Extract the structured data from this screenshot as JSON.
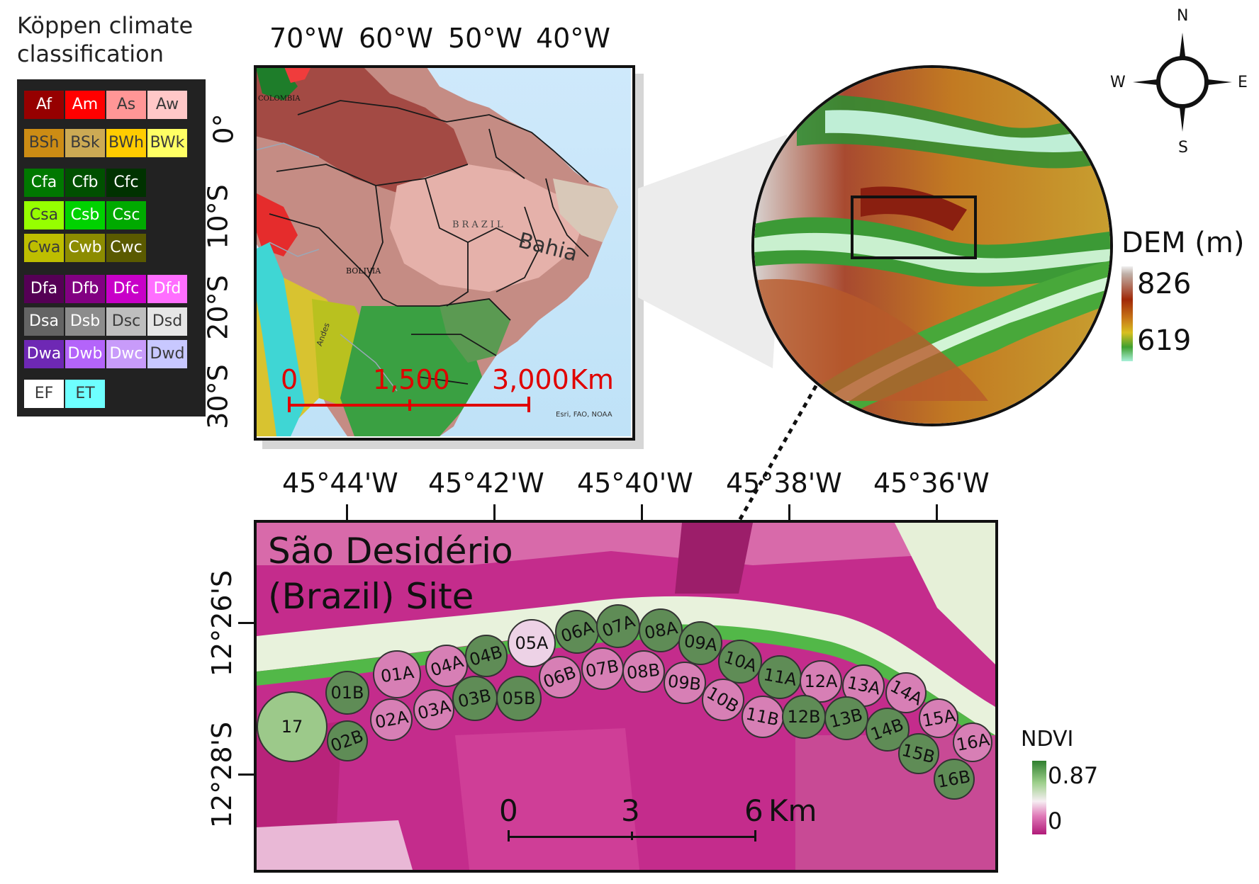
{
  "koppen_legend": {
    "title_line1": "Köppen climate",
    "title_line2": "classification",
    "classes": [
      {
        "code": "Af",
        "color": "#960000"
      },
      {
        "code": "Am",
        "color": "#ff0000"
      },
      {
        "code": "As",
        "color": "#ff9696"
      },
      {
        "code": "Aw",
        "color": "#ffc8c8"
      },
      {
        "code": "BSh",
        "color": "#cc8c14"
      },
      {
        "code": "BSk",
        "color": "#ccaa54"
      },
      {
        "code": "BWh",
        "color": "#ffcc00"
      },
      {
        "code": "BWk",
        "color": "#ffff64"
      },
      {
        "code": "Cfa",
        "color": "#007800"
      },
      {
        "code": "Cfb",
        "color": "#005000"
      },
      {
        "code": "Cfc",
        "color": "#003200"
      },
      {
        "code": "Csa",
        "color": "#96ff00"
      },
      {
        "code": "Csb",
        "color": "#00d200"
      },
      {
        "code": "Csc",
        "color": "#00aa00"
      },
      {
        "code": "Cwa",
        "color": "#bebe00"
      },
      {
        "code": "Cwb",
        "color": "#8c8c00"
      },
      {
        "code": "Cwc",
        "color": "#5a5a00"
      },
      {
        "code": "Dfa",
        "color": "#550055"
      },
      {
        "code": "Dfb",
        "color": "#820082"
      },
      {
        "code": "Dfc",
        "color": "#c800c8"
      },
      {
        "code": "Dfd",
        "color": "#ff6eff"
      },
      {
        "code": "Dsa",
        "color": "#646464"
      },
      {
        "code": "Dsb",
        "color": "#8c8c8c"
      },
      {
        "code": "Dsc",
        "color": "#bebebe"
      },
      {
        "code": "Dsd",
        "color": "#e6e6e6"
      },
      {
        "code": "Dwa",
        "color": "#6e28b4"
      },
      {
        "code": "Dwb",
        "color": "#b464fa"
      },
      {
        "code": "Dwc",
        "color": "#c89bfa"
      },
      {
        "code": "Dwd",
        "color": "#c8c8ff"
      },
      {
        "code": "EF",
        "color": "#ffffff"
      },
      {
        "code": "ET",
        "color": "#6effff"
      }
    ]
  },
  "overview_map": {
    "lon_labels": [
      "70°W",
      "60°W",
      "50°W",
      "40°W"
    ],
    "lat_labels": [
      "0°",
      "10°S",
      "20°S",
      "30°S"
    ],
    "place_labels": {
      "colombia": "COLOMBIA",
      "brazil": "BRAZIL",
      "bolivia": "BOLIVIA",
      "bahia": "Bahia",
      "andes": "Andes"
    },
    "attribution": "Esri, FAO, NOAA",
    "scale": {
      "t0": "0",
      "t1": "1,500",
      "t2": "3,000",
      "unit": "Km",
      "color": "#e00000"
    }
  },
  "compass": {
    "n": "N",
    "s": "S",
    "e": "E",
    "w": "W"
  },
  "dem_legend": {
    "title": "DEM (m)",
    "max": "826",
    "min": "619"
  },
  "site_map": {
    "title_line1": "São Desidério",
    "title_line2": "(Brazil) Site",
    "lon_labels": [
      "45°44'W",
      "45°42'W",
      "45°40'W",
      "45°38'W",
      "45°36'W"
    ],
    "lat_labels": [
      "12°26'S",
      "12°28'S"
    ],
    "scale": {
      "t0": "0",
      "t1": "3",
      "t2": "6",
      "unit": "Km"
    },
    "pivots": [
      {
        "id": "17",
        "fill": "#9cc98a"
      },
      {
        "id": "01A",
        "fill": "#d77fb5"
      },
      {
        "id": "01B",
        "fill": "#5f8c56"
      },
      {
        "id": "02A",
        "fill": "#d77fb5"
      },
      {
        "id": "02B",
        "fill": "#5f8c56"
      },
      {
        "id": "03A",
        "fill": "#d77fb5"
      },
      {
        "id": "03B",
        "fill": "#5f8c56"
      },
      {
        "id": "04A",
        "fill": "#d77fb5"
      },
      {
        "id": "04B",
        "fill": "#5f8c56"
      },
      {
        "id": "05A",
        "fill": "#edd2e6"
      },
      {
        "id": "05B",
        "fill": "#5f8c56"
      },
      {
        "id": "06A",
        "fill": "#5f8c56"
      },
      {
        "id": "06B",
        "fill": "#d77fb5"
      },
      {
        "id": "07A",
        "fill": "#5f8c56"
      },
      {
        "id": "07B",
        "fill": "#d77fb5"
      },
      {
        "id": "08A",
        "fill": "#5f8c56"
      },
      {
        "id": "08B",
        "fill": "#d77fb5"
      },
      {
        "id": "09A",
        "fill": "#5f8c56"
      },
      {
        "id": "09B",
        "fill": "#d77fb5"
      },
      {
        "id": "10A",
        "fill": "#5f8c56"
      },
      {
        "id": "10B",
        "fill": "#d77fb5"
      },
      {
        "id": "11A",
        "fill": "#5f8c56"
      },
      {
        "id": "11B",
        "fill": "#d77fb5"
      },
      {
        "id": "12A",
        "fill": "#d77fb5"
      },
      {
        "id": "12B",
        "fill": "#5f8c56"
      },
      {
        "id": "13A",
        "fill": "#d77fb5"
      },
      {
        "id": "13B",
        "fill": "#5f8c56"
      },
      {
        "id": "14A",
        "fill": "#d77fb5"
      },
      {
        "id": "14B",
        "fill": "#5f8c56"
      },
      {
        "id": "15A",
        "fill": "#d77fb5"
      },
      {
        "id": "15B",
        "fill": "#5f8c56"
      },
      {
        "id": "16A",
        "fill": "#d77fb5"
      },
      {
        "id": "16B",
        "fill": "#5f8c56"
      }
    ]
  },
  "ndvi_legend": {
    "title": "NDVI",
    "max": "0.87",
    "min": "0"
  }
}
